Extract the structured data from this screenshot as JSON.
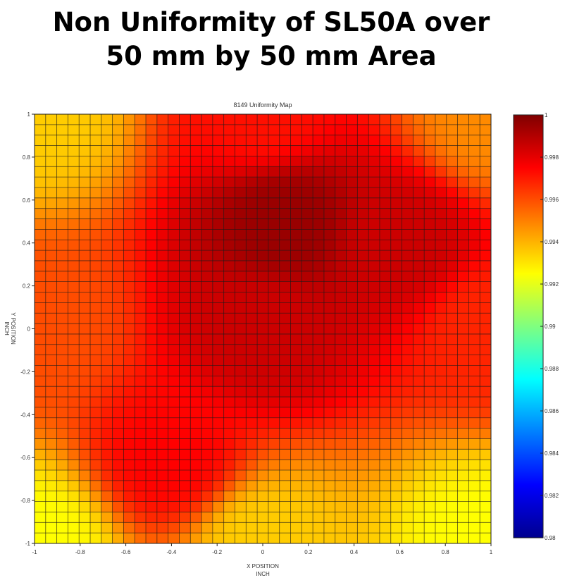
{
  "slide": {
    "title_line1": "Non Uniformity of SL50A over",
    "title_line2": "50 mm by 50 mm Area"
  },
  "chart_data": {
    "type": "heatmap",
    "title": "8149 Uniformity Map",
    "xlabel_line1": "X POSITION",
    "xlabel_line2": "INCH",
    "ylabel_line1": "Y POSITION",
    "ylabel_line2": "INCH",
    "xlim": [
      -1,
      1
    ],
    "ylim": [
      -1,
      1
    ],
    "x_ticks": [
      -1,
      -0.8,
      -0.6,
      -0.4,
      -0.2,
      0,
      0.2,
      0.4,
      0.6,
      0.8,
      1
    ],
    "x_tick_labels": [
      "-1",
      "-0.8",
      "-0.6",
      "-0.4",
      "-0.2",
      "0",
      "0.2",
      "0.4",
      "0.6",
      "0.8",
      "1"
    ],
    "y_ticks": [
      -1,
      -0.8,
      -0.6,
      -0.4,
      -0.2,
      0,
      0.2,
      0.4,
      0.6,
      0.8,
      1
    ],
    "y_tick_labels": [
      "-1",
      "-0.8",
      "-0.6",
      "-0.4",
      "-0.2",
      "0",
      "0.2",
      "0.4",
      "0.6",
      "0.8",
      "1"
    ],
    "colorbar": {
      "range": [
        0.98,
        1.0
      ],
      "ticks": [
        0.98,
        0.982,
        0.984,
        0.986,
        0.988,
        0.99,
        0.992,
        0.994,
        0.996,
        0.998,
        1.0
      ],
      "tick_labels": [
        "0.98",
        "0.982",
        "0.984",
        "0.986",
        "0.988",
        "0.99",
        "0.992",
        "0.994",
        "0.996",
        "0.998",
        "1"
      ],
      "colormap": "jet"
    },
    "grid": true,
    "grid_columns": 41,
    "grid_rows": 41,
    "values": [
      {
        "x": -1,
        "y": 1,
        "v": 0.9935
      },
      {
        "x": 0,
        "y": 1,
        "v": 0.9972
      },
      {
        "x": 1,
        "y": 1,
        "v": 0.9948
      },
      {
        "x": 0.1,
        "y": 0.5,
        "v": 0.9995
      },
      {
        "x": 0.6,
        "y": 0.4,
        "v": 0.9985
      },
      {
        "x": -1,
        "y": 0,
        "v": 0.996
      },
      {
        "x": 0,
        "y": 0,
        "v": 0.9985
      },
      {
        "x": 1,
        "y": 0,
        "v": 0.9968
      },
      {
        "x": -0.4,
        "y": -0.6,
        "v": 0.9975
      },
      {
        "x": -1,
        "y": -1,
        "v": 0.9925
      },
      {
        "x": 0,
        "y": -1,
        "v": 0.9935
      },
      {
        "x": 1,
        "y": -1,
        "v": 0.9925
      }
    ]
  }
}
